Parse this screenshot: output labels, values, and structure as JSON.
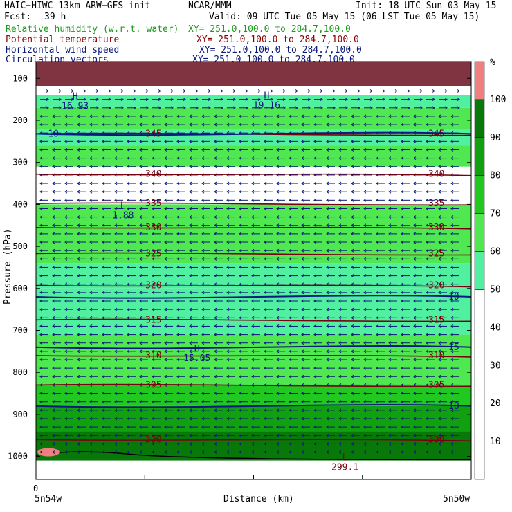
{
  "header": {
    "model": "HAIC−HIWC 13km ARW−GFS init",
    "center": "NCAR/MMM",
    "init": "Init: 18 UTC Sun 03 May 15",
    "fcst_label": "Fcst:",
    "fcst_value": "39 h",
    "valid": "Valid: 09 UTC Tue 05 May 15 (06 LST Tue 05 May 15)"
  },
  "fields": [
    {
      "name": "Relative humidity (w.r.t. water)",
      "xy": "XY= 251.0,100.0 to 284.7,100.0",
      "color": "#1f9a1f"
    },
    {
      "name": "Potential temperature",
      "xy": "XY= 251.0,100.0 to 284.7,100.0",
      "color": "#8b0000"
    },
    {
      "name": "Horizontal wind speed",
      "xy": "XY= 251.0,100.0 to 284.7,100.0",
      "color": "#0a1a7a"
    },
    {
      "name": "Circulation vectors",
      "xy": "XY= 251.0,100.0 to 284.7,100.0",
      "color": "#0a1a7a"
    }
  ],
  "chart_data": {
    "type": "heatmap",
    "ylabel": "Pressure (hPa)",
    "xlabel": "Distance (km)",
    "x_start_label": "5n54w",
    "x_end_label": "5n50w",
    "x_zero_label": "0",
    "yticks": [
      100,
      200,
      300,
      400,
      500,
      600,
      700,
      800,
      900,
      1000
    ],
    "ylim": [
      60,
      1055
    ],
    "x_range": [
      0,
      100
    ],
    "colorbar": {
      "unit": "%",
      "ticks": [
        10,
        20,
        30,
        40,
        50,
        60,
        70,
        80,
        90,
        100
      ],
      "colors": [
        {
          "lo": 0,
          "hi": 50,
          "color": "#ffffff"
        },
        {
          "lo": 50,
          "hi": 60,
          "color": "#50f0a0"
        },
        {
          "lo": 60,
          "hi": 70,
          "color": "#50e850"
        },
        {
          "lo": 70,
          "hi": 80,
          "color": "#20c820"
        },
        {
          "lo": 80,
          "hi": 90,
          "color": "#10a010"
        },
        {
          "lo": 90,
          "hi": 100,
          "color": "#087808"
        },
        {
          "lo": 100,
          "hi": 110,
          "color": "#f08080"
        }
      ]
    },
    "rh_bands": [
      {
        "p_top": 60,
        "p_bot": 140,
        "color": "#ffffff"
      },
      {
        "p_top": 140,
        "p_bot": 170,
        "color": "#50f0a0"
      },
      {
        "p_top": 170,
        "p_bot": 220,
        "color": "#50e850"
      },
      {
        "p_top": 220,
        "p_bot": 260,
        "color": "#50f0a0"
      },
      {
        "p_top": 260,
        "p_bot": 310,
        "color": "#50e850"
      },
      {
        "p_top": 310,
        "p_bot": 400,
        "color": "#ffffff"
      },
      {
        "p_top": 400,
        "p_bot": 540,
        "color": "#50e850"
      },
      {
        "p_top": 540,
        "p_bot": 600,
        "color": "#50f0a0"
      },
      {
        "p_top": 600,
        "p_bot": 710,
        "color": "#50f0a0"
      },
      {
        "p_top": 710,
        "p_bot": 830,
        "color": "#50e850"
      },
      {
        "p_top": 830,
        "p_bot": 880,
        "color": "#20c820"
      },
      {
        "p_top": 880,
        "p_bot": 940,
        "color": "#10a010"
      },
      {
        "p_top": 940,
        "p_bot": 1010,
        "color": "#087808"
      }
    ],
    "theta_isentropes": [
      {
        "value": "345",
        "p": 232
      },
      {
        "value": "340",
        "p": 328
      },
      {
        "value": "335",
        "p": 398
      },
      {
        "value": "330",
        "p": 455
      },
      {
        "value": "325",
        "p": 517
      },
      {
        "value": "320",
        "p": 593
      },
      {
        "value": "315",
        "p": 675
      },
      {
        "value": "310",
        "p": 760
      },
      {
        "value": "305",
        "p": 830
      },
      {
        "value": "300",
        "p": 960
      }
    ],
    "wind_contours": [
      {
        "value": "10",
        "p": 232
      },
      {
        "value": "10",
        "p": 620
      },
      {
        "value": "15",
        "p": 740
      },
      {
        "value": "10",
        "p": 880
      }
    ],
    "extrema": [
      {
        "symbol": "H",
        "value": "16.93",
        "x": 9,
        "p": 150
      },
      {
        "symbol": "H",
        "value": "19.16",
        "x": 53,
        "p": 148
      },
      {
        "symbol": "L",
        "value": "1.88",
        "x": 20,
        "p": 410
      },
      {
        "symbol": "H",
        "value": "15.05",
        "x": 37,
        "p": 750
      },
      {
        "symbol": "L",
        "value": "299.1",
        "x": 71,
        "p": 1010
      }
    ]
  }
}
